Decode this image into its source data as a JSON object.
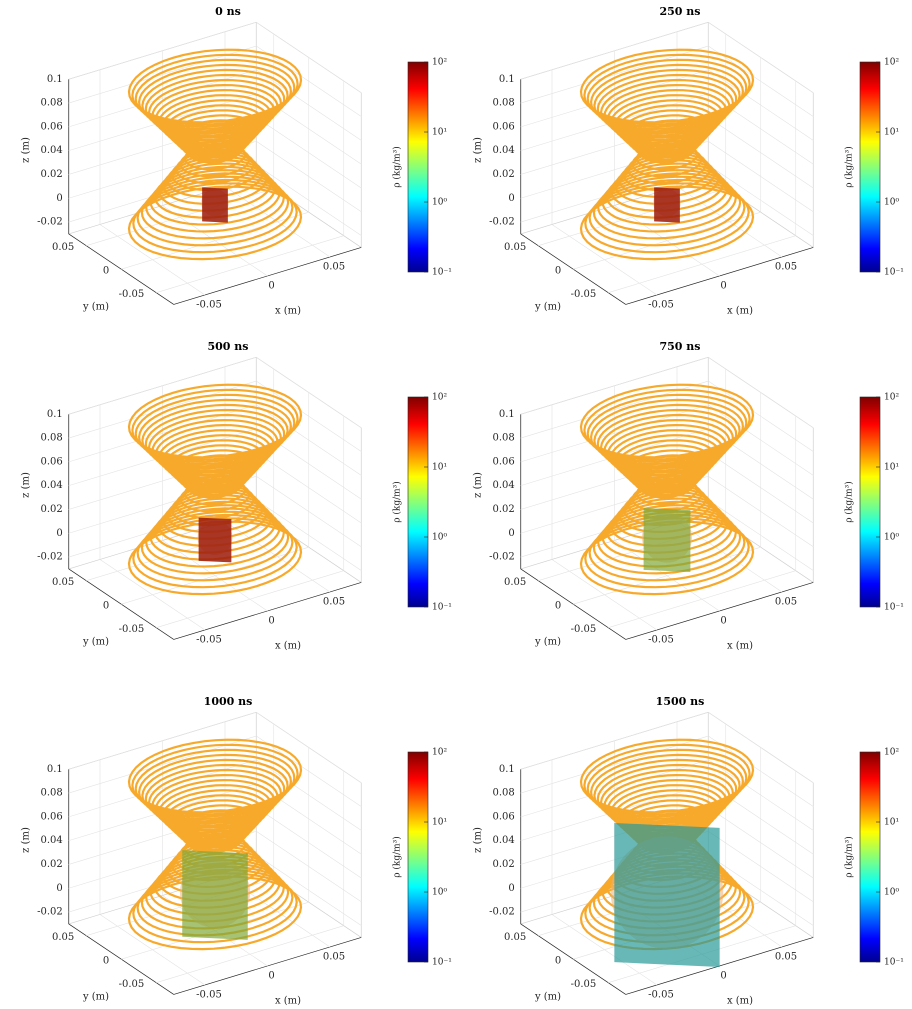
{
  "chart_data": [
    {
      "type": "plot3",
      "title": "0 ns",
      "xlabel": "x (m)",
      "ylabel": "y (m)",
      "zlabel": "z (m)",
      "xlim": [
        -0.075,
        0.075
      ],
      "ylim": [
        -0.075,
        0.075
      ],
      "zlim": [
        -0.03,
        0.1
      ],
      "xticks": [
        -0.05,
        0,
        0.05
      ],
      "yticks": [
        -0.05,
        0,
        0.05
      ],
      "zticks": [
        -0.02,
        0,
        0.02,
        0.04,
        0.06,
        0.08,
        0.1
      ],
      "grid": true,
      "color": "#f7a92b",
      "colorbar": {
        "label": "ρ (kg/m³)",
        "scale": "log",
        "lim": [
          0.1,
          100
        ],
        "ticks": [
          {
            "value": 0.1,
            "label": "10⁻¹"
          },
          {
            "value": 1,
            "label": "10⁰"
          },
          {
            "value": 10,
            "label": "10¹"
          },
          {
            "value": 100,
            "label": "10²"
          }
        ]
      }
    },
    {
      "type": "plot3",
      "title": "250 ns",
      "xlabel": "x (m)",
      "ylabel": "y (m)",
      "zlabel": "z (m)",
      "xlim": [
        -0.075,
        0.075
      ],
      "ylim": [
        -0.075,
        0.075
      ],
      "zlim": [
        -0.03,
        0.1
      ],
      "xticks": [
        -0.05,
        0,
        0.05
      ],
      "yticks": [
        -0.05,
        0,
        0.05
      ],
      "zticks": [
        -0.02,
        0,
        0.02,
        0.04,
        0.06,
        0.08,
        0.1
      ],
      "grid": true,
      "color": "#f7a92b",
      "colorbar": {
        "label": "ρ (kg/m³)",
        "scale": "log",
        "lim": [
          0.1,
          100
        ],
        "ticks": [
          {
            "value": 0.1,
            "label": "10⁻¹"
          },
          {
            "value": 1,
            "label": "10⁰"
          },
          {
            "value": 10,
            "label": "10¹"
          },
          {
            "value": 100,
            "label": "10²"
          }
        ]
      }
    },
    {
      "type": "plot3",
      "title": "500 ns",
      "xlabel": "x (m)",
      "ylabel": "y (m)",
      "zlabel": "z (m)",
      "xlim": [
        -0.075,
        0.075
      ],
      "ylim": [
        -0.075,
        0.075
      ],
      "zlim": [
        -0.03,
        0.1
      ],
      "xticks": [
        -0.05,
        0,
        0.05
      ],
      "yticks": [
        -0.05,
        0,
        0.05
      ],
      "zticks": [
        -0.02,
        0,
        0.02,
        0.04,
        0.06,
        0.08,
        0.1
      ],
      "grid": true,
      "color": "#f7a92b",
      "colorbar": {
        "label": "ρ (kg/m³)",
        "scale": "log",
        "lim": [
          0.1,
          100
        ],
        "ticks": [
          {
            "value": 0.1,
            "label": "10⁻¹"
          },
          {
            "value": 1,
            "label": "10⁰"
          },
          {
            "value": 10,
            "label": "10¹"
          },
          {
            "value": 100,
            "label": "10²"
          }
        ]
      }
    },
    {
      "type": "plot3",
      "title": "750 ns",
      "xlabel": "x (m)",
      "ylabel": "y (m)",
      "zlabel": "z (m)",
      "xlim": [
        -0.075,
        0.075
      ],
      "ylim": [
        -0.075,
        0.075
      ],
      "zlim": [
        -0.03,
        0.1
      ],
      "xticks": [
        -0.05,
        0,
        0.05
      ],
      "yticks": [
        -0.05,
        0,
        0.05
      ],
      "zticks": [
        -0.02,
        0,
        0.02,
        0.04,
        0.06,
        0.08,
        0.1
      ],
      "grid": true,
      "color": "#f7a92b",
      "colorbar": {
        "label": "ρ (kg/m³)",
        "scale": "log",
        "lim": [
          0.1,
          100
        ],
        "ticks": [
          {
            "value": 0.1,
            "label": "10⁻¹"
          },
          {
            "value": 1,
            "label": "10⁰"
          },
          {
            "value": 10,
            "label": "10¹"
          },
          {
            "value": 100,
            "label": "10²"
          }
        ]
      }
    },
    {
      "type": "plot3",
      "title": "1000 ns",
      "xlabel": "x (m)",
      "ylabel": "y (m)",
      "zlabel": "z (m)",
      "xlim": [
        -0.075,
        0.075
      ],
      "ylim": [
        -0.075,
        0.075
      ],
      "zlim": [
        -0.03,
        0.1
      ],
      "xticks": [
        -0.05,
        0,
        0.05
      ],
      "yticks": [
        -0.05,
        0,
        0.05
      ],
      "zticks": [
        -0.02,
        0,
        0.02,
        0.04,
        0.06,
        0.08,
        0.1
      ],
      "grid": true,
      "color": "#f7a92b",
      "colorbar": {
        "label": "ρ (kg/m³)",
        "scale": "log",
        "lim": [
          0.1,
          100
        ],
        "ticks": [
          {
            "value": 0.1,
            "label": "10⁻¹"
          },
          {
            "value": 1,
            "label": "10⁰"
          },
          {
            "value": 10,
            "label": "10¹"
          },
          {
            "value": 100,
            "label": "10²"
          }
        ]
      }
    },
    {
      "type": "plot3",
      "title": "1500 ns",
      "xlabel": "x (m)",
      "ylabel": "y (m)",
      "zlabel": "z (m)",
      "xlim": [
        -0.075,
        0.075
      ],
      "ylim": [
        -0.075,
        0.075
      ],
      "zlim": [
        -0.03,
        0.1
      ],
      "xticks": [
        -0.05,
        0,
        0.05
      ],
      "yticks": [
        -0.05,
        0,
        0.05
      ],
      "zticks": [
        -0.02,
        0,
        0.02,
        0.04,
        0.06,
        0.08,
        0.1
      ],
      "grid": true,
      "color": "#f7a92b",
      "colorbar": {
        "label": "ρ (kg/m³)",
        "scale": "log",
        "lim": [
          0.1,
          100
        ],
        "ticks": [
          {
            "value": 0.1,
            "label": "10⁻¹"
          },
          {
            "value": 1,
            "label": "10⁰"
          },
          {
            "value": 10,
            "label": "10¹"
          },
          {
            "value": 100,
            "label": "10²"
          }
        ]
      }
    }
  ]
}
